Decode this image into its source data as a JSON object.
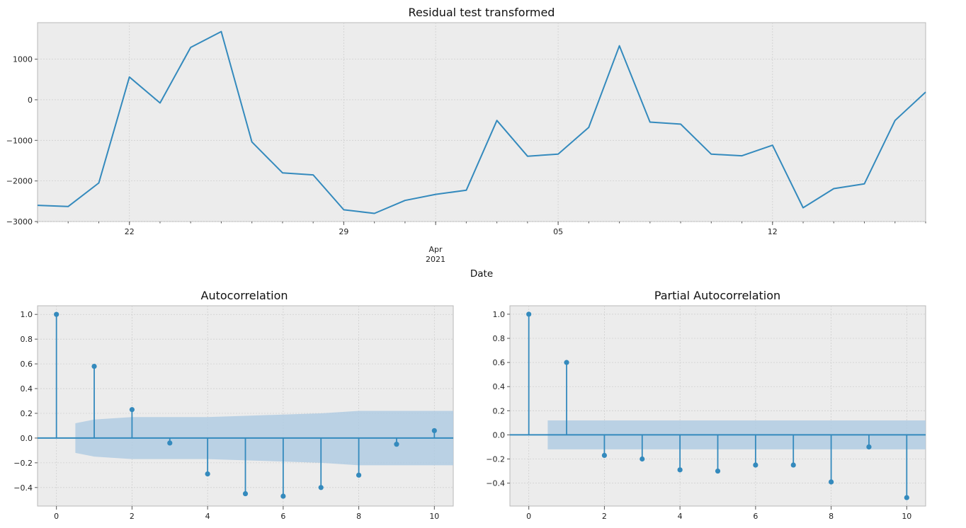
{
  "colors": {
    "line": "#348abd",
    "band": "#aecbe2",
    "background": "#ececec"
  },
  "chart_data": [
    {
      "type": "line",
      "title": "Residual test transformed",
      "xlabel": "Date",
      "ylabel": "",
      "grid": true,
      "x_start": "2021-03-19",
      "x_end": "2021-04-17",
      "ylim": [
        -3000,
        1900
      ],
      "yticks": [
        -3000,
        -2000,
        -1000,
        0,
        1000
      ],
      "ytick_labels": [
        "−3000",
        "−2000",
        "−1000",
        "0",
        "1000"
      ],
      "xtick_major": [
        {
          "date": "2021-03-22",
          "label": "22"
        },
        {
          "date": "2021-03-29",
          "label": "29"
        },
        {
          "date": "2021-04-05",
          "label": "05"
        },
        {
          "date": "2021-04-12",
          "label": "12"
        }
      ],
      "month_tick": {
        "date": "2021-04-01",
        "month": "Apr",
        "year": "2021"
      },
      "series": [
        {
          "x": [
            "2021-03-19",
            "2021-03-20",
            "2021-03-21",
            "2021-03-22",
            "2021-03-23",
            "2021-03-24",
            "2021-03-25",
            "2021-03-26",
            "2021-03-27",
            "2021-03-28",
            "2021-03-29",
            "2021-03-30",
            "2021-03-31",
            "2021-04-01",
            "2021-04-02",
            "2021-04-03",
            "2021-04-04",
            "2021-04-05",
            "2021-04-06",
            "2021-04-07",
            "2021-04-08",
            "2021-04-09",
            "2021-04-10",
            "2021-04-11",
            "2021-04-12",
            "2021-04-13",
            "2021-04-14",
            "2021-04-15",
            "2021-04-16",
            "2021-04-17"
          ],
          "values": [
            -2600,
            -2630,
            -2050,
            560,
            -80,
            1290,
            1680,
            -1040,
            -1800,
            -1850,
            -2710,
            -2800,
            -2480,
            -2330,
            -2230,
            -510,
            -1390,
            -1340,
            -680,
            1330,
            -550,
            -600,
            -1340,
            -1380,
            -1120,
            -2660,
            -2190,
            -2070,
            -510,
            190
          ]
        }
      ]
    },
    {
      "type": "scatter",
      "title": "Autocorrelation",
      "xlabel": "",
      "ylabel": "",
      "grid": true,
      "xlim": [
        -0.5,
        10.5
      ],
      "ylim": [
        -0.55,
        1.07
      ],
      "xticks": [
        0,
        2,
        4,
        6,
        8,
        10
      ],
      "yticks": [
        -0.4,
        -0.2,
        0.0,
        0.2,
        0.4,
        0.6,
        0.8,
        1.0
      ],
      "ytick_labels": [
        "−0.4",
        "−0.2",
        "0.0",
        "0.2",
        "0.4",
        "0.6",
        "0.8",
        "1.0"
      ],
      "lags": [
        0,
        1,
        2,
        3,
        4,
        5,
        6,
        7,
        8,
        9,
        10
      ],
      "values": [
        1.0,
        0.58,
        0.23,
        -0.04,
        -0.29,
        -0.45,
        -0.47,
        -0.4,
        -0.3,
        -0.05,
        0.06
      ],
      "confidence_band": {
        "lags": [
          0.5,
          1,
          2,
          3,
          4,
          5,
          6,
          7,
          8,
          9,
          10,
          10.5
        ],
        "upper": [
          0.12,
          0.15,
          0.17,
          0.17,
          0.17,
          0.18,
          0.19,
          0.2,
          0.22,
          0.22,
          0.22,
          0.22
        ],
        "lower": [
          -0.12,
          -0.15,
          -0.17,
          -0.17,
          -0.17,
          -0.18,
          -0.19,
          -0.2,
          -0.22,
          -0.22,
          -0.22,
          -0.22
        ]
      }
    },
    {
      "type": "scatter",
      "title": "Partial Autocorrelation",
      "xlabel": "",
      "ylabel": "",
      "grid": true,
      "xlim": [
        -0.5,
        10.5
      ],
      "ylim": [
        -0.59,
        1.07
      ],
      "xticks": [
        0,
        2,
        4,
        6,
        8,
        10
      ],
      "yticks": [
        -0.4,
        -0.2,
        0.0,
        0.2,
        0.4,
        0.6,
        0.8,
        1.0
      ],
      "ytick_labels": [
        "−0.4",
        "−0.2",
        "0.0",
        "0.2",
        "0.4",
        "0.6",
        "0.8",
        "1.0"
      ],
      "lags": [
        0,
        1,
        2,
        3,
        4,
        5,
        6,
        7,
        8,
        9,
        10
      ],
      "values": [
        1.0,
        0.6,
        -0.17,
        -0.2,
        -0.29,
        -0.3,
        -0.25,
        -0.25,
        -0.39,
        -0.1,
        -0.52
      ],
      "confidence_band": {
        "lags": [
          0.5,
          10.5
        ],
        "upper": [
          0.12,
          0.12
        ],
        "lower": [
          -0.12,
          -0.12
        ]
      }
    }
  ]
}
